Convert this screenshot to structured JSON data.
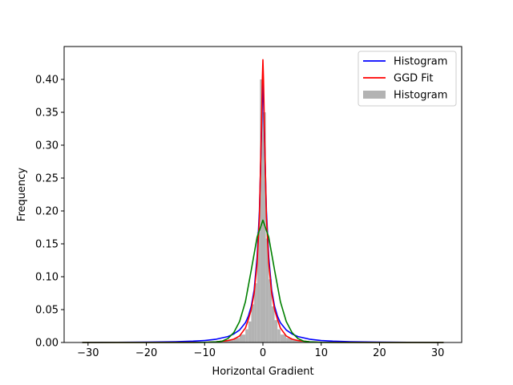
{
  "chart_data": {
    "type": "line",
    "title": "",
    "xlabel": "Horizontal Gradient",
    "ylabel": "Frequency",
    "xlim": [
      -34.1,
      34.1
    ],
    "ylim": [
      0.0,
      0.45
    ],
    "grid": false,
    "legend_position": "top-right",
    "x_ticks": [
      {
        "value": -30,
        "label": "−30"
      },
      {
        "value": -20,
        "label": "−20"
      },
      {
        "value": -10,
        "label": "−10"
      },
      {
        "value": 0,
        "label": "0"
      },
      {
        "value": 10,
        "label": "10"
      },
      {
        "value": 20,
        "label": "20"
      },
      {
        "value": 30,
        "label": "30"
      }
    ],
    "y_ticks": [
      {
        "value": 0.0,
        "label": "0.00"
      },
      {
        "value": 0.05,
        "label": "0.05"
      },
      {
        "value": 0.1,
        "label": "0.10"
      },
      {
        "value": 0.15,
        "label": "0.15"
      },
      {
        "value": 0.2,
        "label": "0.20"
      },
      {
        "value": 0.25,
        "label": "0.25"
      },
      {
        "value": 0.3,
        "label": "0.30"
      },
      {
        "value": 0.35,
        "label": "0.35"
      },
      {
        "value": 0.4,
        "label": "0.40"
      }
    ],
    "histogram": {
      "name": "Histogram",
      "color": "#b3b3b3",
      "x_range": [
        -31,
        31
      ],
      "bins": [
        {
          "x0": -8.0,
          "x1": -7.0,
          "y": 0.001
        },
        {
          "x0": -7.0,
          "x1": -6.0,
          "y": 0.002
        },
        {
          "x0": -6.0,
          "x1": -5.0,
          "y": 0.004
        },
        {
          "x0": -5.0,
          "x1": -4.0,
          "y": 0.007
        },
        {
          "x0": -4.0,
          "x1": -3.0,
          "y": 0.012
        },
        {
          "x0": -3.0,
          "x1": -2.5,
          "y": 0.02
        },
        {
          "x0": -2.5,
          "x1": -2.0,
          "y": 0.032
        },
        {
          "x0": -2.0,
          "x1": -1.5,
          "y": 0.058
        },
        {
          "x0": -1.5,
          "x1": -1.0,
          "y": 0.09
        },
        {
          "x0": -1.0,
          "x1": -0.5,
          "y": 0.168
        },
        {
          "x0": -0.5,
          "x1": 0.0,
          "y": 0.4
        },
        {
          "x0": 0.0,
          "x1": 0.5,
          "y": 0.35
        },
        {
          "x0": 0.5,
          "x1": 1.0,
          "y": 0.158
        },
        {
          "x0": 1.0,
          "x1": 1.5,
          "y": 0.096
        },
        {
          "x0": 1.5,
          "x1": 2.0,
          "y": 0.055
        },
        {
          "x0": 2.0,
          "x1": 2.5,
          "y": 0.034
        },
        {
          "x0": 2.5,
          "x1": 3.0,
          "y": 0.02
        },
        {
          "x0": 3.0,
          "x1": 4.0,
          "y": 0.012
        },
        {
          "x0": 4.0,
          "x1": 5.0,
          "y": 0.007
        },
        {
          "x0": 5.0,
          "x1": 6.0,
          "y": 0.004
        },
        {
          "x0": 6.0,
          "x1": 7.0,
          "y": 0.002
        },
        {
          "x0": 7.0,
          "x1": 8.0,
          "y": 0.001
        }
      ]
    },
    "series": [
      {
        "name": "Histogram",
        "color": "#0000ff",
        "x": [
          -31,
          -25,
          -20,
          -15,
          -12,
          -10,
          -8,
          -6,
          -5,
          -4,
          -3,
          -2.5,
          -2,
          -1.5,
          -1,
          -0.6,
          -0.3,
          -0.1,
          0,
          0.1,
          0.3,
          0.6,
          1,
          1.5,
          2,
          2.5,
          3,
          4,
          5,
          6,
          8,
          10,
          12,
          15,
          20,
          25,
          31
        ],
        "y": [
          0.0,
          0.0003,
          0.0006,
          0.0012,
          0.002,
          0.003,
          0.005,
          0.009,
          0.013,
          0.019,
          0.03,
          0.04,
          0.055,
          0.08,
          0.13,
          0.2,
          0.3,
          0.37,
          0.4,
          0.37,
          0.3,
          0.2,
          0.13,
          0.08,
          0.055,
          0.04,
          0.03,
          0.019,
          0.013,
          0.009,
          0.005,
          0.003,
          0.002,
          0.0012,
          0.0006,
          0.0003,
          0.0
        ]
      },
      {
        "name": "GGD Fit",
        "color": "#ff0000",
        "x": [
          -31,
          -20,
          -10,
          -8,
          -6,
          -5,
          -4,
          -3,
          -2.5,
          -2,
          -1.5,
          -1,
          -0.6,
          -0.3,
          -0.1,
          0,
          0.1,
          0.3,
          0.6,
          1,
          1.5,
          2,
          2.5,
          3,
          4,
          5,
          6,
          8,
          10,
          20,
          31
        ],
        "y": [
          0.0,
          0.0,
          0.0003,
          0.001,
          0.003,
          0.005,
          0.01,
          0.022,
          0.035,
          0.05,
          0.075,
          0.12,
          0.19,
          0.31,
          0.4,
          0.43,
          0.4,
          0.31,
          0.19,
          0.12,
          0.075,
          0.05,
          0.035,
          0.022,
          0.01,
          0.005,
          0.003,
          0.001,
          0.0003,
          0.0,
          0.0
        ]
      },
      {
        "color": "#008000",
        "x": [
          -31,
          -20,
          -12,
          -10,
          -8,
          -7,
          -6,
          -5,
          -4,
          -3,
          -2,
          -1,
          0,
          1,
          2,
          3,
          4,
          5,
          6,
          7,
          8,
          10,
          12,
          20,
          31
        ],
        "y": [
          0.0,
          0.0,
          0.0,
          0.0002,
          0.001,
          0.002,
          0.006,
          0.015,
          0.032,
          0.062,
          0.11,
          0.16,
          0.186,
          0.16,
          0.11,
          0.062,
          0.032,
          0.015,
          0.006,
          0.002,
          0.001,
          0.0002,
          0.0,
          0.0,
          0.0
        ]
      }
    ],
    "legend": [
      {
        "label": "Histogram",
        "kind": "line",
        "color": "#0000ff"
      },
      {
        "label": "GGD Fit",
        "kind": "line",
        "color": "#ff0000"
      },
      {
        "label": "Histogram",
        "kind": "patch",
        "color": "#b3b3b3"
      }
    ]
  }
}
